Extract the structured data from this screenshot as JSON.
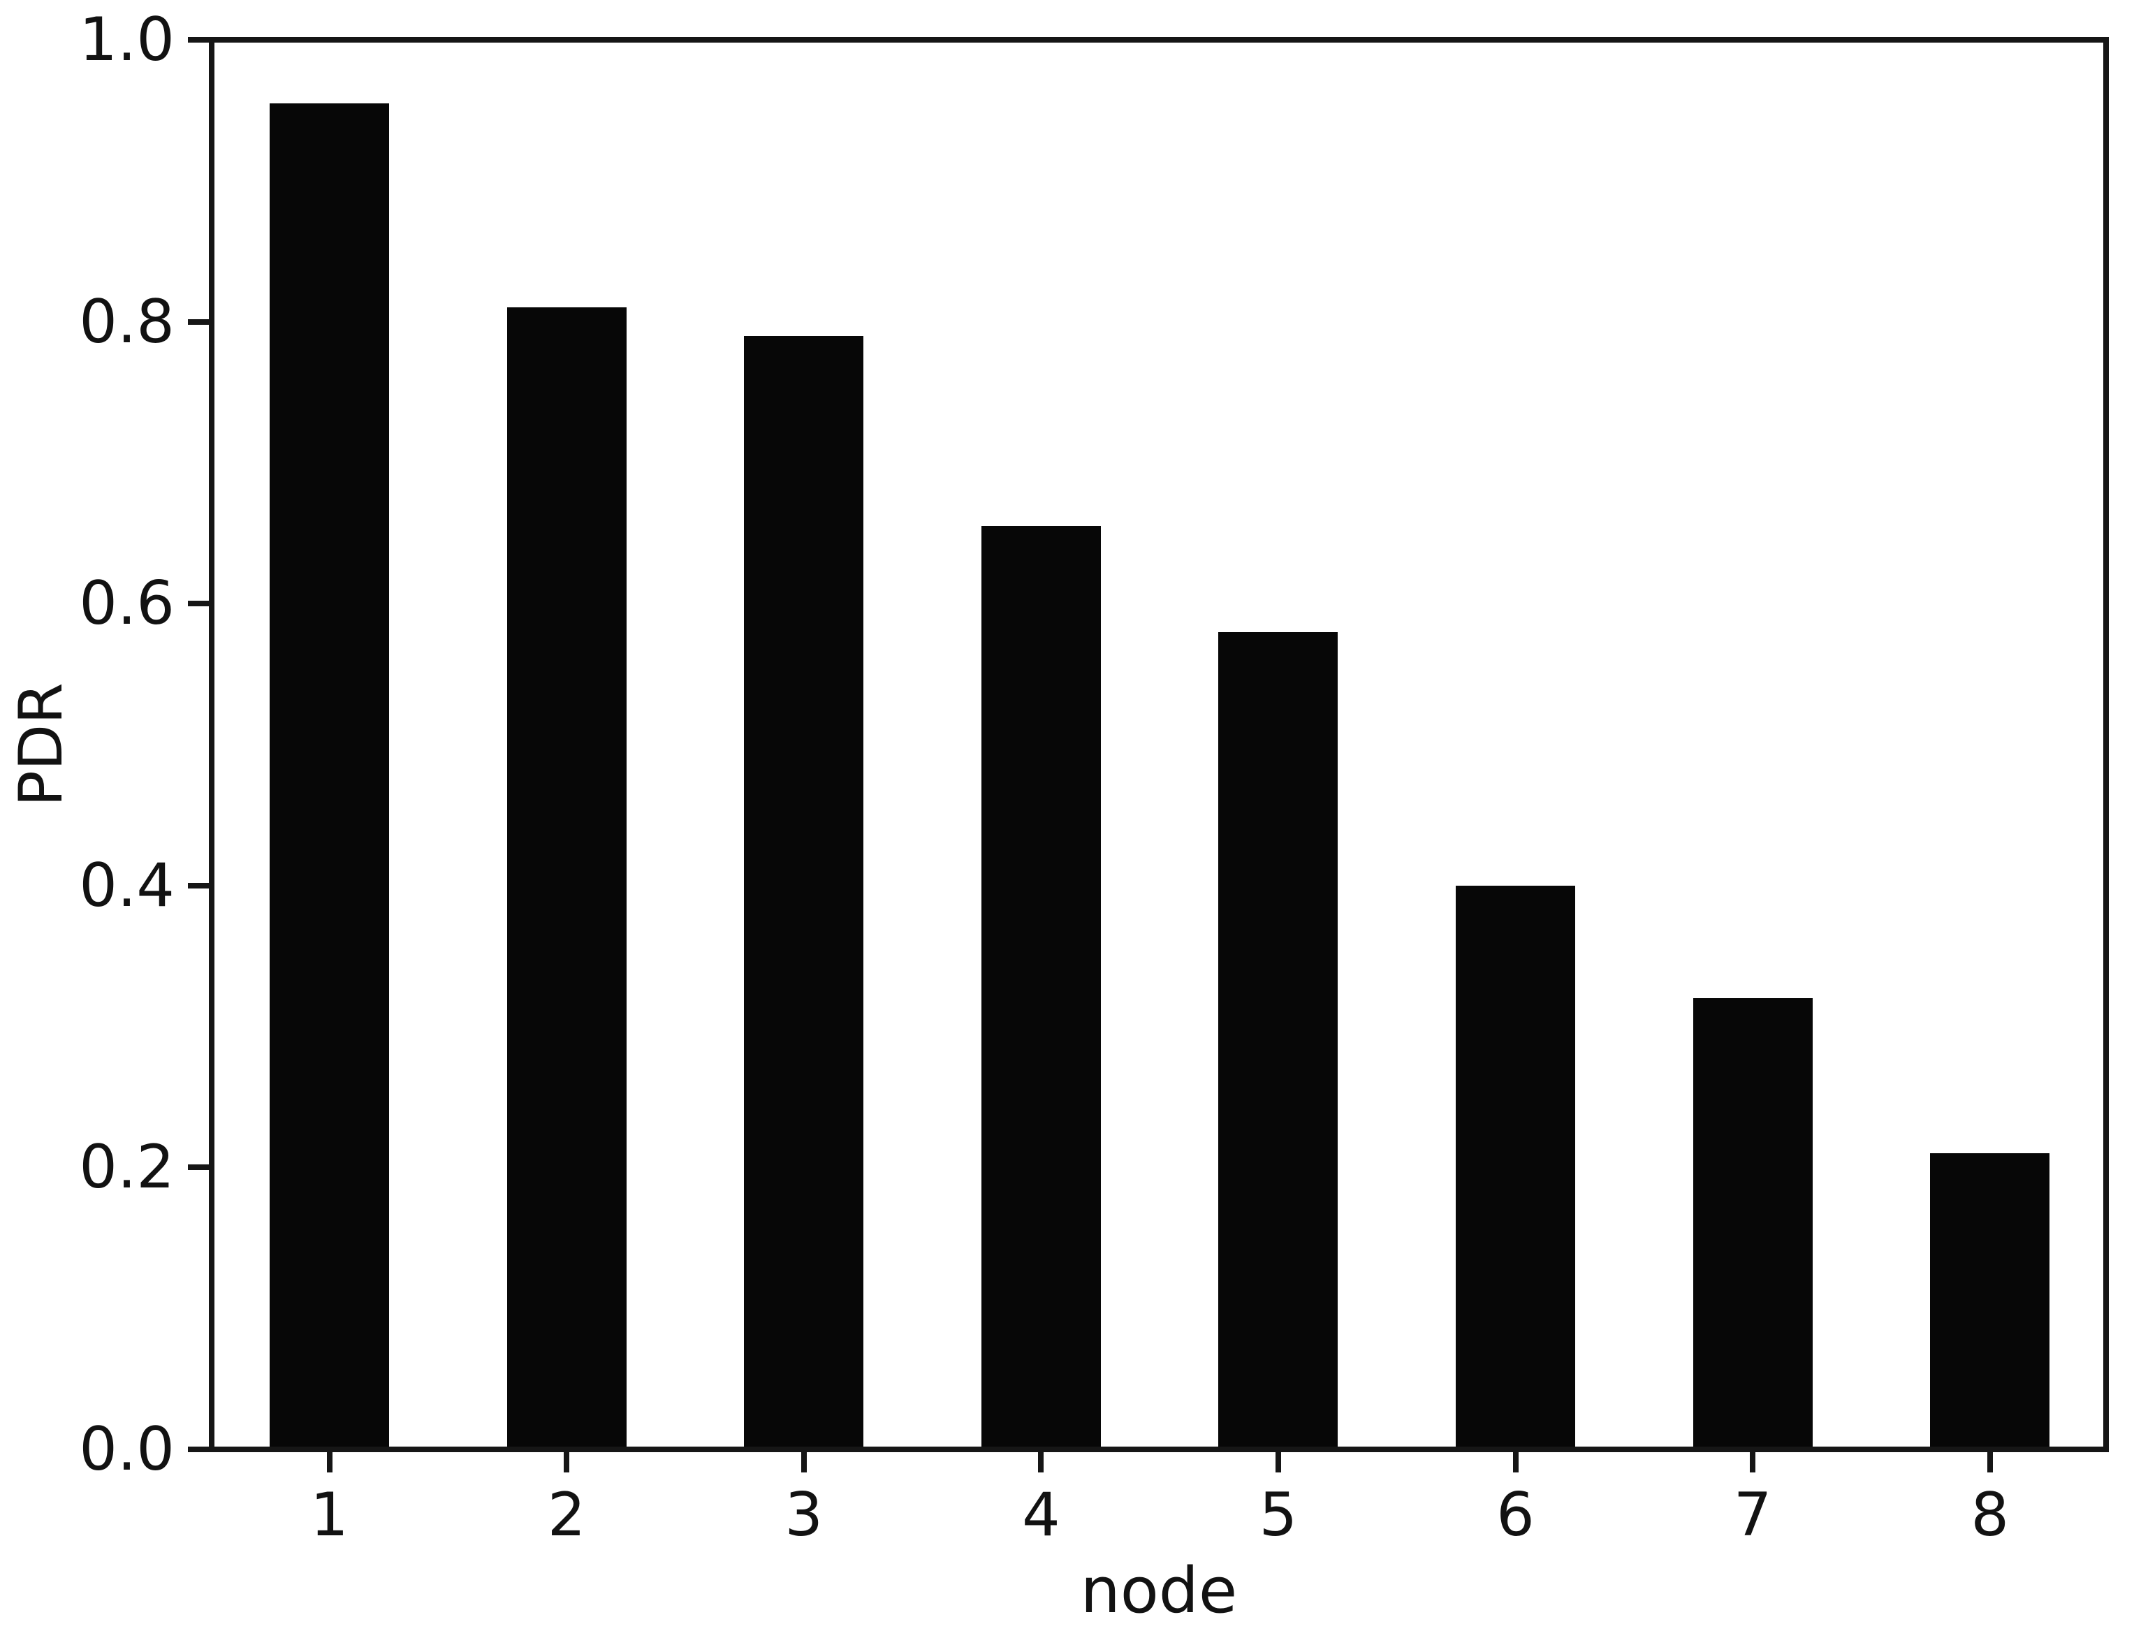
{
  "figure": {
    "background_color": "#ffffff",
    "bar_color": "#070707",
    "axis_color": "#161616",
    "text_color": "#121212"
  },
  "chart_data": {
    "type": "bar",
    "title": "",
    "xlabel": "node",
    "ylabel": "PDR",
    "categories": [
      "1",
      "2",
      "3",
      "4",
      "5",
      "6",
      "7",
      "8"
    ],
    "values": [
      0.955,
      0.81,
      0.79,
      0.655,
      0.58,
      0.4,
      0.32,
      0.21
    ],
    "ylim": [
      0.0,
      1.0
    ],
    "y_ticks": [
      0.0,
      0.2,
      0.4,
      0.6,
      0.8,
      1.0
    ],
    "y_tick_labels": [
      "0.0",
      "0.2",
      "0.4",
      "0.6",
      "0.8",
      "1.0"
    ],
    "grid": false,
    "legend": false,
    "bar_width_fraction": 0.5,
    "series_color": "black",
    "frame_on": true
  }
}
